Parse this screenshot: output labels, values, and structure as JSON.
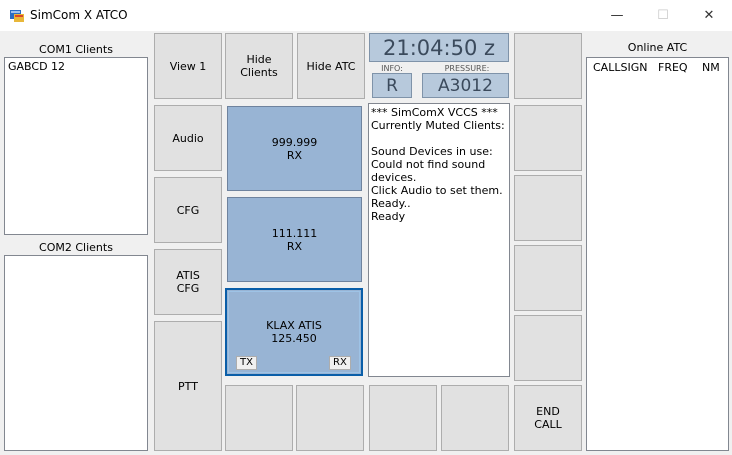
{
  "window": {
    "title": "SimCom X ATCO",
    "minimize_label": "—",
    "maximize_label": "☐",
    "close_label": "✕"
  },
  "com1": {
    "label": "COM1 Clients",
    "items": [
      "GABCD 12"
    ]
  },
  "com2": {
    "label": "COM2 Clients",
    "items": []
  },
  "buttons": {
    "view1": "View 1",
    "hide_clients": "Hide\nClients",
    "hide_atc": "Hide ATC",
    "audio": "Audio",
    "cfg": "CFG",
    "atis_cfg": "ATIS\nCFG",
    "ptt": "PTT",
    "end_call": "END\nCALL"
  },
  "clock": {
    "time": "21:04:50 z",
    "info_label": "INFO:",
    "info_value": "R",
    "pressure_label": "PRESSURE:",
    "pressure_value": "A3012"
  },
  "freqs": [
    {
      "line1": "999.999",
      "line2": "RX"
    },
    {
      "line1": "111.111",
      "line2": "RX"
    },
    {
      "line1": "KLAX ATIS",
      "line2": "125.450",
      "tx": "TX",
      "rx": "RX"
    }
  ],
  "log": "*** SimComX VCCS ***\nCurrently Muted Clients:\n\nSound Devices in use:\nCould not find sound devices.\nClick Audio to set them.\nReady..\nReady",
  "online_atc": {
    "label": "Online ATC",
    "columns": [
      "CALLSIGN",
      "FREQ",
      "NM"
    ]
  }
}
